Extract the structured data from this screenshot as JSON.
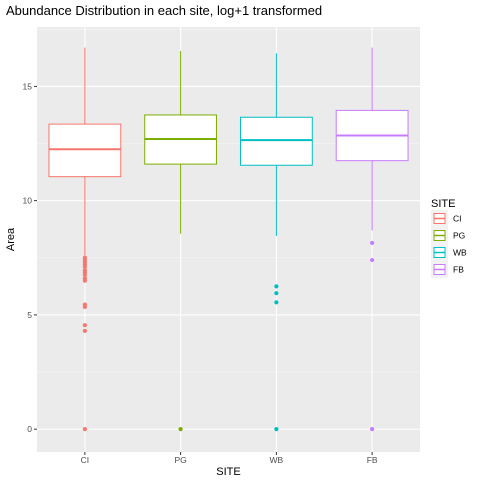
{
  "chart_data": {
    "type": "box",
    "title": "Abundance Distribution in each site, log+1 transformed",
    "xlabel": "SITE",
    "ylabel": "Area",
    "categories": [
      "CI",
      "PG",
      "WB",
      "FB"
    ],
    "ylim": [
      -1,
      17.6
    ],
    "yticks": [
      0,
      5,
      10,
      15
    ],
    "grid": true,
    "legend": {
      "title": "SITE",
      "position": "right"
    },
    "series": [
      {
        "name": "CI",
        "color": "#F8766D",
        "whisker_low": 7.6,
        "q1": 11.05,
        "median": 12.25,
        "q3": 13.35,
        "whisker_high": 16.7,
        "outliers": [
          7.5,
          7.4,
          7.3,
          7.2,
          7.1,
          6.95,
          6.85,
          6.75,
          6.6,
          6.5,
          5.45,
          5.35,
          4.55,
          4.3,
          0
        ]
      },
      {
        "name": "PG",
        "color": "#7CAE00",
        "whisker_low": 8.55,
        "q1": 11.6,
        "median": 12.7,
        "q3": 13.75,
        "whisker_high": 16.55,
        "outliers": [
          0
        ]
      },
      {
        "name": "WB",
        "color": "#00BFC4",
        "whisker_low": 8.45,
        "q1": 11.55,
        "median": 12.65,
        "q3": 13.65,
        "whisker_high": 16.45,
        "outliers": [
          6.25,
          5.95,
          5.55,
          0
        ]
      },
      {
        "name": "FB",
        "color": "#C77CFF",
        "whisker_low": 8.7,
        "q1": 11.75,
        "median": 12.85,
        "q3": 13.95,
        "whisker_high": 16.7,
        "outliers": [
          8.15,
          7.4,
          0
        ]
      }
    ]
  }
}
